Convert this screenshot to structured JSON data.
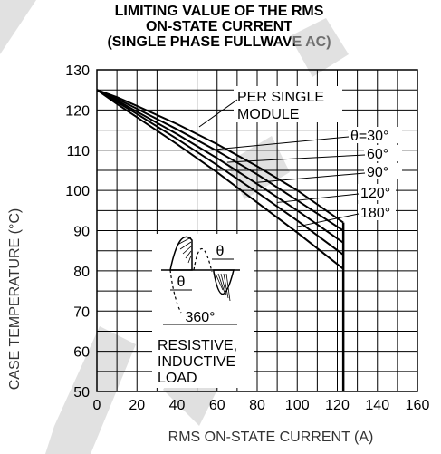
{
  "chart_data": {
    "type": "line",
    "title_lines": [
      "LIMITING VALUE OF THE RMS",
      "ON-STATE CURRENT",
      "(SINGLE PHASE FULLWAVE AC)"
    ],
    "xlabel": "RMS ON-STATE CURRENT (A)",
    "ylabel": "CASE TEMPERATURE (°C)",
    "xlim": [
      0,
      160
    ],
    "ylim": [
      50,
      130
    ],
    "xticks": [
      0,
      20,
      40,
      60,
      80,
      100,
      120,
      140,
      160
    ],
    "yticks": [
      50,
      60,
      70,
      80,
      90,
      100,
      110,
      120,
      130
    ],
    "grid": true,
    "series": [
      {
        "name": "θ=30°",
        "x": [
          0,
          10,
          20,
          40,
          60,
          80,
          100,
          123
        ],
        "y": [
          125,
          123.2,
          121,
          116.5,
          111.5,
          106,
          100,
          92
        ]
      },
      {
        "name": "60°",
        "x": [
          0,
          10,
          20,
          40,
          60,
          80,
          100,
          123
        ],
        "y": [
          125,
          122.8,
          120.3,
          115.2,
          109.8,
          104,
          97.5,
          90
        ]
      },
      {
        "name": "90°",
        "x": [
          0,
          10,
          20,
          40,
          60,
          80,
          100,
          123
        ],
        "y": [
          125,
          122.4,
          119.6,
          114,
          108,
          101.6,
          95,
          87
        ]
      },
      {
        "name": "120°",
        "x": [
          0,
          10,
          20,
          40,
          60,
          80,
          100,
          123
        ],
        "y": [
          125,
          122,
          119,
          112.8,
          106.3,
          99.5,
          92.5,
          84
        ]
      },
      {
        "name": "180°",
        "x": [
          0,
          10,
          20,
          40,
          60,
          80,
          100,
          123
        ],
        "y": [
          125,
          121.5,
          118.2,
          111.5,
          104.5,
          97,
          89.5,
          80.5
        ]
      }
    ],
    "limit_line": {
      "x": 123,
      "y_from": 92,
      "y_to": 50
    },
    "annotations": {
      "module": [
        "PER SINGLE",
        "MODULE"
      ],
      "load": [
        "RESISTIVE,",
        "INDUCTIVE",
        "LOAD"
      ],
      "waveform_theta": "θ",
      "waveform_theta2": "θ",
      "waveform_360": "360°"
    },
    "colors": {
      "curve": "#000000",
      "grid": "#000000",
      "watermark": "#c8c8c8"
    }
  }
}
